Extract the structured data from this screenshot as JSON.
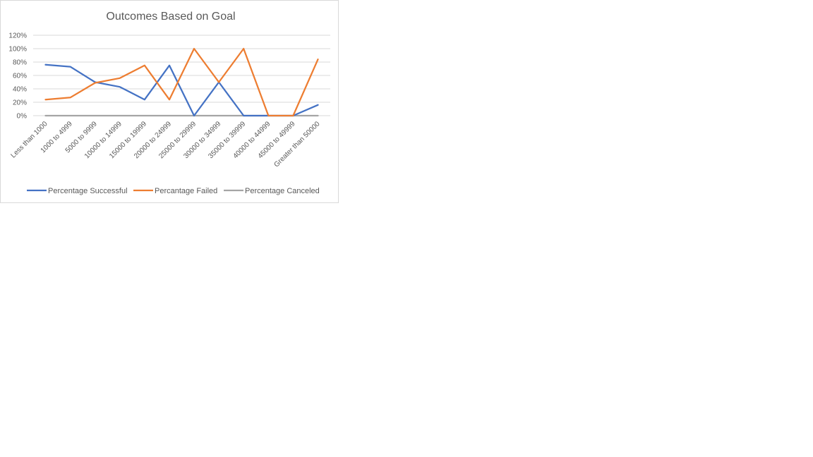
{
  "chart_data": {
    "type": "line",
    "title": "Outcomes Based on Goal",
    "xlabel": "",
    "ylabel": "",
    "ylim": [
      0,
      1.2
    ],
    "y_ticks": [
      0,
      0.2,
      0.4,
      0.6,
      0.8,
      1.0,
      1.2
    ],
    "y_tick_labels": [
      "0%",
      "20%",
      "40%",
      "60%",
      "80%",
      "100%",
      "120%"
    ],
    "grid": true,
    "legend_position": "bottom",
    "categories": [
      "Less than 1000",
      "1000 to 4999",
      "5000 to 9999",
      "10000 to 14999",
      "15000 to 19999",
      "20000 to 24999",
      "25000 to 29999",
      "30000 to 34999",
      "35000 to 39999",
      "40000 to 44999",
      "45000 to 49999",
      "Greater than 50000"
    ],
    "series": [
      {
        "name": "Percentage Successful",
        "color": "#4472c4",
        "values": [
          0.76,
          0.73,
          0.5,
          0.43,
          0.24,
          0.75,
          0.0,
          0.5,
          0.0,
          0.0,
          0.0,
          0.16
        ]
      },
      {
        "name": "Percantage Failed",
        "color": "#ed7d31",
        "values": [
          0.24,
          0.27,
          0.49,
          0.56,
          0.75,
          0.24,
          1.0,
          0.5,
          1.0,
          0.0,
          0.0,
          0.84
        ]
      },
      {
        "name": "Percentage Canceled",
        "color": "#a5a5a5",
        "values": [
          0,
          0,
          0,
          0,
          0,
          0,
          0,
          0,
          0,
          0,
          0,
          0
        ]
      }
    ]
  }
}
